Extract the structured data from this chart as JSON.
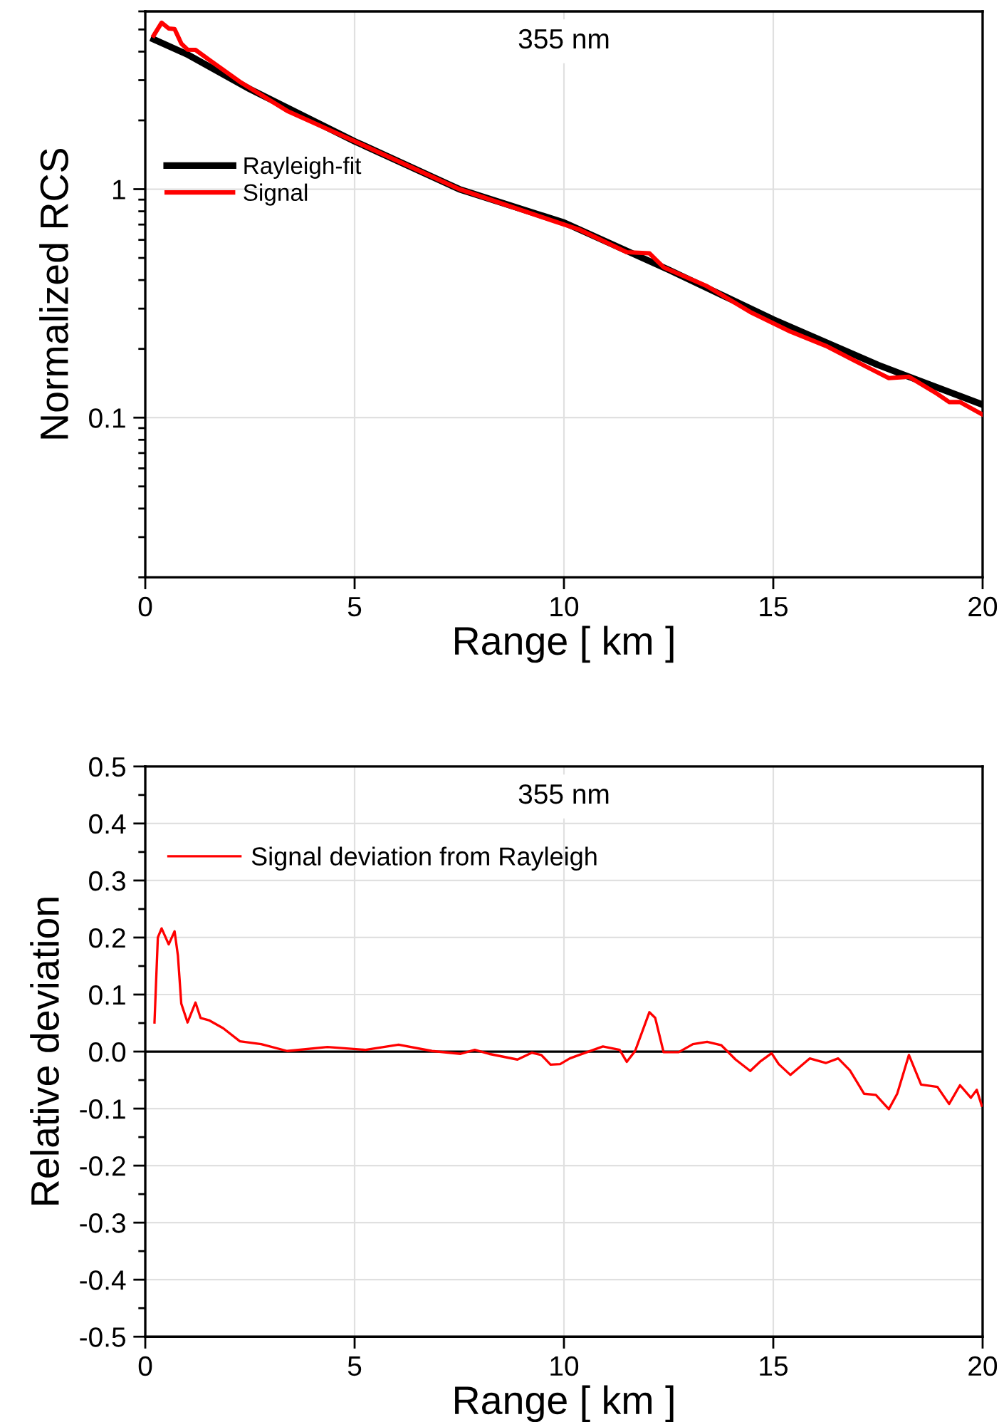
{
  "chart_data": [
    {
      "type": "line",
      "title": "355 nm",
      "xlabel": "Range [ km ]",
      "ylabel": "Normalized RCS",
      "log": "y",
      "xlim": [
        0,
        20
      ],
      "xticks": [
        0,
        5,
        10,
        15,
        20
      ],
      "ylim": [
        0.02,
        6
      ],
      "yticks": [
        {
          "value": 0.1,
          "label": "0.1"
        },
        {
          "value": 1,
          "label": "1"
        }
      ],
      "grid": true,
      "legend": "left",
      "marker": "none",
      "line_style": "solid",
      "series": [
        {
          "name": "Rayleigh-fit",
          "color": "#000000",
          "x": [
            0.2,
            1,
            2.5,
            5,
            7.5,
            10,
            12.5,
            15,
            17.5,
            20
          ],
          "values": [
            4.53,
            3.89,
            2.74,
            1.62,
            1.0,
            0.714,
            0.444,
            0.269,
            0.17,
            0.114
          ]
        },
        {
          "name": "Signal",
          "color": "#ff0000",
          "x": [
            0.2,
            0.39,
            0.56,
            0.7,
            0.86,
            1.01,
            1.2,
            1.52,
            2.26,
            3.39,
            5,
            7.5,
            9.68,
            10.36,
            11.5,
            12.04,
            12.38,
            13.42,
            14.45,
            15.41,
            16.26,
            17.17,
            17.76,
            18.24,
            18.92,
            19.2,
            19.46,
            20
          ],
          "values": [
            4.7,
            5.35,
            5.05,
            5.02,
            4.34,
            4.08,
            4.07,
            3.69,
            2.95,
            2.2,
            1.62,
            1.0,
            0.733,
            0.666,
            0.53,
            0.524,
            0.455,
            0.376,
            0.29,
            0.238,
            0.206,
            0.169,
            0.149,
            0.151,
            0.127,
            0.117,
            0.117,
            0.103
          ]
        }
      ]
    },
    {
      "type": "line",
      "title": "355 nm",
      "xlabel": "Range [ km ]",
      "ylabel": "Relative deviation",
      "xlim": [
        0,
        20
      ],
      "xticks": [
        0,
        5,
        10,
        15,
        20
      ],
      "ylim": [
        -0.5,
        0.5
      ],
      "yticks": [
        {
          "value": -0.5,
          "label": "-0.5"
        },
        {
          "value": -0.4,
          "label": "-0.4"
        },
        {
          "value": -0.3,
          "label": "-0.3"
        },
        {
          "value": -0.2,
          "label": "-0.2"
        },
        {
          "value": -0.1,
          "label": "-0.1"
        },
        {
          "value": 0,
          "label": "0.0"
        },
        {
          "value": 0.1,
          "label": "0.1"
        },
        {
          "value": 0.2,
          "label": "0.2"
        },
        {
          "value": 0.3,
          "label": "0.3"
        },
        {
          "value": 0.4,
          "label": "0.4"
        },
        {
          "value": 0.5,
          "label": "0.5"
        }
      ],
      "grid": true,
      "legend": "upper left",
      "marker": "none",
      "line_style": "solid",
      "ref_lines": [
        {
          "axis": "y",
          "value": 0,
          "color": "#000000"
        }
      ],
      "series": [
        {
          "name": "Signal deviation from Rayleigh",
          "color": "#ff0000",
          "x": [
            0.22,
            0.3,
            0.39,
            0.56,
            0.7,
            0.78,
            0.86,
            1.01,
            1.2,
            1.32,
            1.52,
            1.86,
            2.26,
            2.77,
            3.39,
            4.35,
            5.26,
            6.05,
            6.85,
            7.53,
            7.87,
            8.21,
            8.89,
            9.23,
            9.46,
            9.68,
            9.91,
            10.14,
            10.36,
            10.93,
            11.33,
            11.5,
            11.7,
            12.04,
            12.18,
            12.38,
            12.74,
            13.08,
            13.42,
            13.76,
            14.1,
            14.45,
            14.68,
            14.96,
            15.13,
            15.41,
            15.87,
            16.26,
            16.55,
            16.83,
            17.17,
            17.45,
            17.76,
            17.96,
            18.24,
            18.53,
            18.92,
            19.2,
            19.46,
            19.72,
            19.86,
            19.98
          ],
          "values": [
            0.051,
            0.2,
            0.216,
            0.188,
            0.211,
            0.168,
            0.084,
            0.051,
            0.086,
            0.059,
            0.055,
            0.041,
            0.018,
            0.013,
            0.001,
            0.008,
            0.003,
            0.012,
            0.001,
            -0.004,
            0.003,
            -0.004,
            -0.014,
            -0.002,
            -0.006,
            -0.023,
            -0.022,
            -0.012,
            -0.006,
            0.009,
            0.003,
            -0.018,
            0.001,
            0.069,
            0.059,
            -0.001,
            -0.001,
            0.013,
            0.017,
            0.011,
            -0.014,
            -0.034,
            -0.018,
            -0.003,
            -0.022,
            -0.041,
            -0.012,
            -0.02,
            -0.012,
            -0.033,
            -0.074,
            -0.076,
            -0.101,
            -0.074,
            -0.006,
            -0.058,
            -0.062,
            -0.092,
            -0.059,
            -0.081,
            -0.067,
            -0.095
          ]
        }
      ]
    }
  ]
}
